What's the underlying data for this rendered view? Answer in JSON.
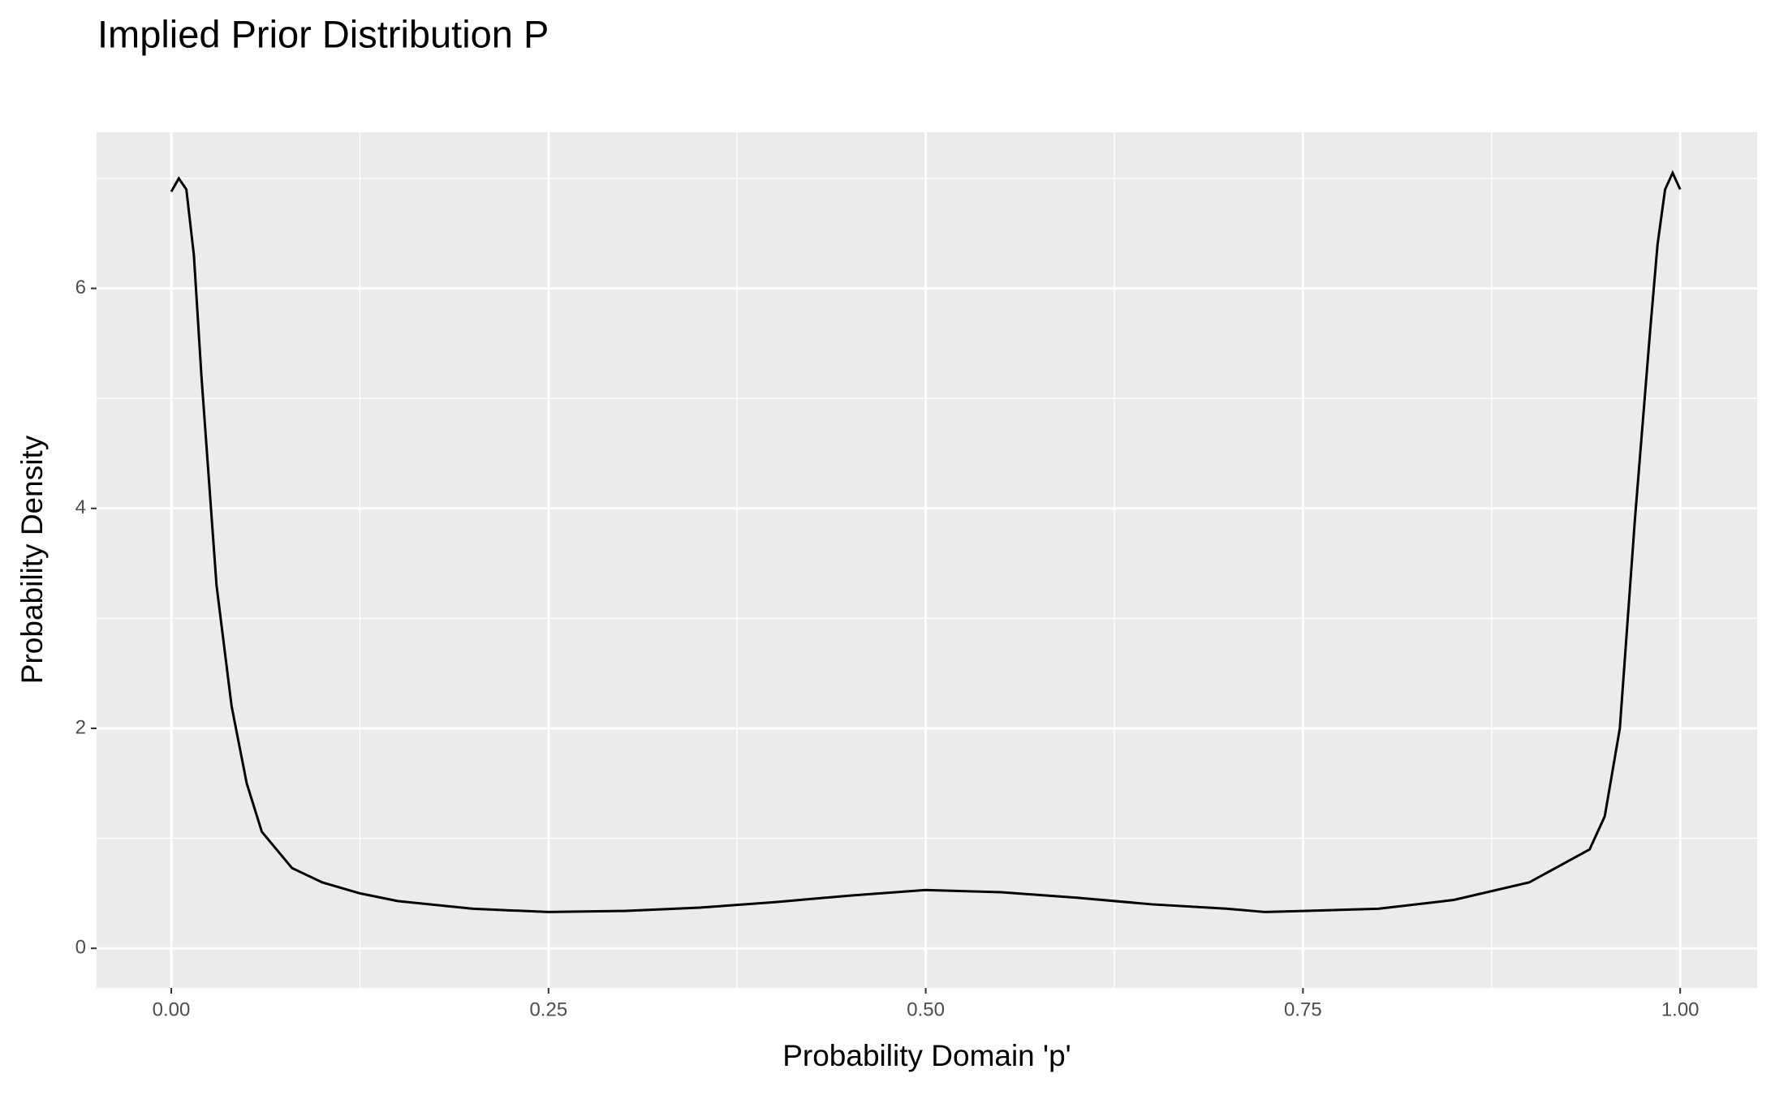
{
  "chart_data": {
    "type": "line",
    "title": "Implied Prior Distribution P",
    "x_label": "Probability Domain 'p'",
    "y_label": "Probability Density",
    "x": [
      0,
      0.005,
      0.01,
      0.015,
      0.02,
      0.03,
      0.04,
      0.05,
      0.06,
      0.08,
      0.1,
      0.125,
      0.15,
      0.2,
      0.25,
      0.3,
      0.35,
      0.4,
      0.45,
      0.5,
      0.55,
      0.6,
      0.65,
      0.7,
      0.725,
      0.75,
      0.8,
      0.85,
      0.9,
      0.94,
      0.95,
      0.96,
      0.97,
      0.98,
      0.985,
      0.99,
      0.995,
      1.0
    ],
    "series": [
      {
        "name": "density",
        "color": "#000000",
        "values": [
          6.88,
          7.0,
          6.9,
          6.3,
          5.2,
          3.3,
          2.2,
          1.5,
          1.06,
          0.73,
          0.6,
          0.5,
          0.43,
          0.36,
          0.33,
          0.34,
          0.37,
          0.42,
          0.48,
          0.53,
          0.51,
          0.46,
          0.4,
          0.36,
          0.33,
          0.34,
          0.36,
          0.44,
          0.6,
          0.9,
          1.2,
          2.0,
          3.9,
          5.6,
          6.4,
          6.9,
          7.05,
          6.9
        ]
      }
    ],
    "xlim": [
      -0.0495,
      1.051
    ],
    "ylim": [
      -0.36,
      7.42
    ],
    "xticks": [
      {
        "value": 0,
        "label": "0.00"
      },
      {
        "value": 0.25,
        "label": "0.25"
      },
      {
        "value": 0.5,
        "label": "0.50"
      },
      {
        "value": 0.75,
        "label": "0.75"
      },
      {
        "value": 1,
        "label": "1.00"
      }
    ],
    "yticks": [
      0,
      2,
      4,
      6
    ],
    "minor_xticks": [
      0.125,
      0.375,
      0.625,
      0.875
    ],
    "minor_yticks": [
      1,
      3,
      5,
      7
    ],
    "grid": true
  }
}
